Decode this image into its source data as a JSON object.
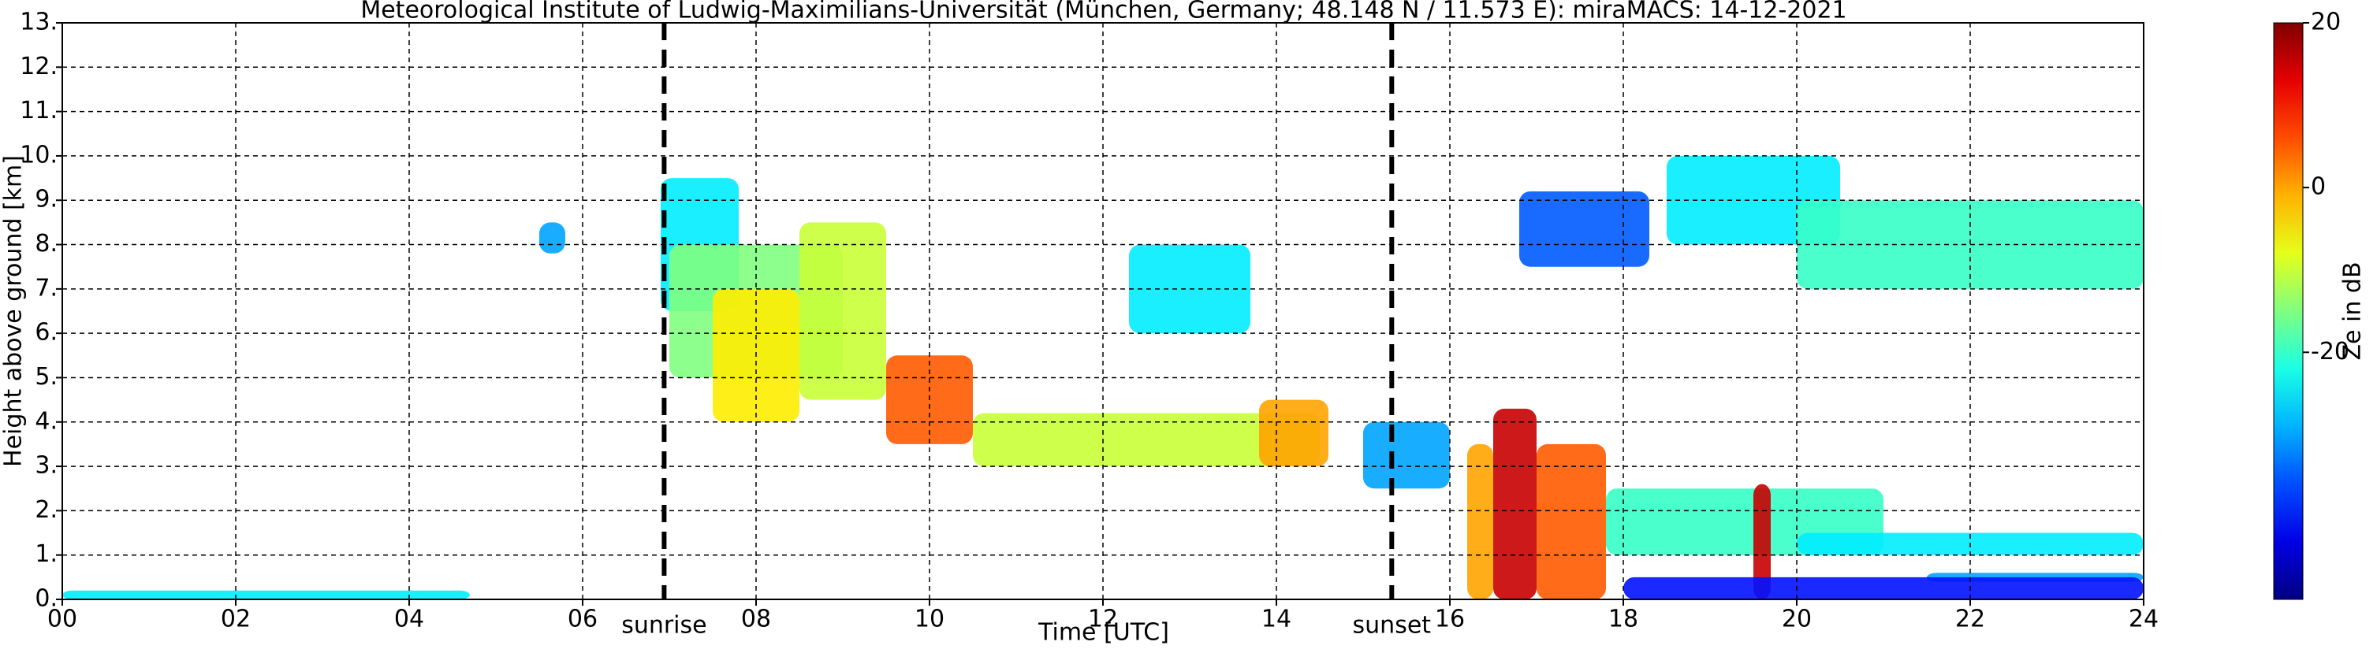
{
  "chart_data": {
    "type": "radar-time-height",
    "title": "Meteorological Institute of Ludwig-Maximilians-Universität (München, Germany; 48.148 N / 11.573 E):    miraMACS: 14-12-2021",
    "x_label": "Time [UTC]",
    "y_label": "Height above ground [km]",
    "colorbar_label": "Ze in dB",
    "colormap": "jet",
    "grid": true,
    "xlim": [
      0,
      24
    ],
    "xticks": [
      {
        "value": 0,
        "label": "00"
      },
      {
        "value": 2,
        "label": "02"
      },
      {
        "value": 4,
        "label": "04"
      },
      {
        "value": 6,
        "label": "06"
      },
      {
        "value": 8,
        "label": "08"
      },
      {
        "value": 10,
        "label": "10"
      },
      {
        "value": 12,
        "label": "12"
      },
      {
        "value": 14,
        "label": "14"
      },
      {
        "value": 16,
        "label": "16"
      },
      {
        "value": 18,
        "label": "18"
      },
      {
        "value": 20,
        "label": "20"
      },
      {
        "value": 22,
        "label": "22"
      },
      {
        "value": 24,
        "label": "24"
      }
    ],
    "ylim": [
      0,
      13
    ],
    "yticks": [
      {
        "value": 0,
        "label": "0."
      },
      {
        "value": 1,
        "label": "1."
      },
      {
        "value": 2,
        "label": "2."
      },
      {
        "value": 3,
        "label": "3."
      },
      {
        "value": 4,
        "label": "4."
      },
      {
        "value": 5,
        "label": "5."
      },
      {
        "value": 6,
        "label": "6."
      },
      {
        "value": 7,
        "label": "7."
      },
      {
        "value": 8,
        "label": "8."
      },
      {
        "value": 9,
        "label": "9."
      },
      {
        "value": 10,
        "label": "10."
      },
      {
        "value": 11,
        "label": "11."
      },
      {
        "value": 12,
        "label": "12."
      },
      {
        "value": 13,
        "label": "13."
      }
    ],
    "zlim": [
      -50,
      20
    ],
    "zticks": [
      20,
      0,
      -20
    ],
    "annotations": [
      {
        "text": "sunrise",
        "x": 6.94
      },
      {
        "text": "sunset",
        "x": 15.33
      }
    ],
    "regions": {
      "x0": [
        0,
        6.9,
        7,
        7.5,
        8.5,
        9.5,
        10.5,
        13.8,
        12.3,
        16.2,
        16.5,
        17.0,
        17.8,
        19.5,
        20,
        21.5,
        18,
        18.5,
        20,
        15,
        5.5,
        16.8
      ],
      "x1": [
        4.7,
        7.8,
        9,
        8.5,
        9.5,
        10.5,
        14.5,
        14.6,
        13.7,
        16.5,
        17.0,
        17.8,
        21,
        19.7,
        24,
        24,
        24,
        20.5,
        24,
        16,
        5.8,
        18.3
      ],
      "y0": [
        0,
        6.5,
        5,
        4,
        4.5,
        3.5,
        3,
        3,
        6,
        0,
        0,
        0,
        1,
        0,
        1,
        0.4,
        0,
        8,
        7,
        2.5,
        7.8,
        7.5
      ],
      "y1": [
        0.2,
        9.5,
        8,
        7,
        8.5,
        5.5,
        4.2,
        4.5,
        8,
        3.5,
        4.3,
        3.5,
        2.5,
        2.6,
        1.5,
        0.6,
        0.5,
        10,
        9,
        4,
        8.5,
        9.2
      ],
      "ze": [
        -25,
        -25,
        -15,
        -5,
        -10,
        5,
        -10,
        0,
        -25,
        0,
        15,
        5,
        -20,
        15,
        -25,
        -30,
        -40,
        -25,
        -20,
        -30,
        -30,
        -35
      ]
    }
  }
}
